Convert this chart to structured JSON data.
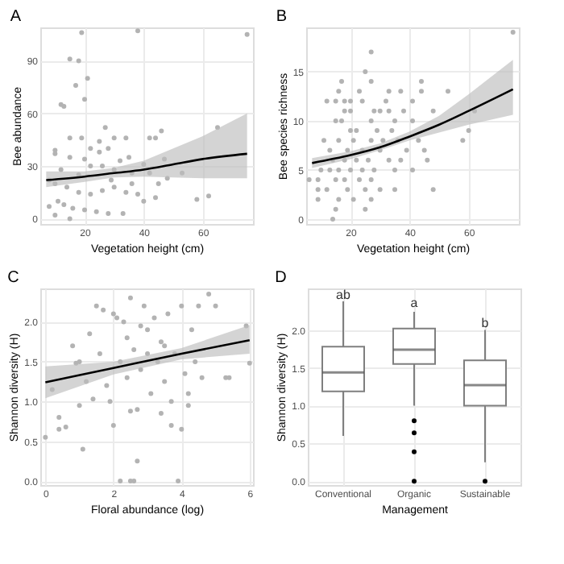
{
  "chart_data": [
    {
      "type": "scatter",
      "title": "A",
      "xlabel": "Vegetation height (cm)",
      "ylabel": "Bee abundance",
      "xlim": [
        5,
        77
      ],
      "ylim": [
        -3,
        109
      ],
      "xticks": [
        20,
        40,
        60
      ],
      "yticks": [
        0,
        30,
        60,
        90
      ],
      "grid": true,
      "series": [
        {
          "type": "scatter",
          "color": "#b3b3b3",
          "x": [
            19,
            38,
            75,
            15,
            18,
            21,
            17,
            20,
            12,
            13,
            27,
            46,
            65,
            10,
            10,
            15,
            19,
            22,
            30,
            34,
            42,
            44,
            25,
            15,
            20,
            25,
            28,
            35,
            32,
            40,
            47,
            12,
            18,
            22,
            26,
            30,
            36,
            42,
            48,
            53,
            8,
            10,
            14,
            18,
            22,
            26,
            30,
            34,
            38,
            44,
            58,
            62,
            8,
            11,
            13,
            16,
            20,
            24,
            28,
            33,
            10,
            15,
            40,
            29,
            45,
            36
          ],
          "values": [
            106,
            107,
            105,
            91,
            90,
            80,
            76,
            68,
            65,
            64,
            52,
            50,
            52,
            39,
            37,
            46,
            46,
            40,
            46,
            46,
            46,
            46,
            44,
            35,
            34,
            38,
            40,
            35,
            33,
            31,
            34,
            28,
            25,
            30,
            30,
            28,
            26,
            26,
            23,
            26,
            22,
            20,
            18,
            15,
            14,
            16,
            18,
            15,
            14,
            12,
            11,
            13,
            7,
            10,
            8,
            6,
            5,
            4,
            3,
            3,
            2,
            0,
            10,
            22,
            20,
            20
          ]
        },
        {
          "type": "line",
          "color": "#000000",
          "x": [
            7,
            20,
            30,
            40,
            50,
            60,
            75
          ],
          "values": [
            22,
            24,
            26,
            28,
            31,
            34,
            37
          ],
          "lower": [
            18,
            21,
            23.5,
            24,
            23.5,
            23,
            23
          ],
          "upper": [
            27,
            27,
            29,
            33,
            40,
            47,
            60
          ]
        }
      ]
    },
    {
      "type": "scatter",
      "title": "B",
      "xlabel": "Vegetation height (cm)",
      "ylabel": "Bee species richness",
      "xlim": [
        5,
        77
      ],
      "ylim": [
        -0.5,
        19.5
      ],
      "xticks": [
        20,
        40,
        60
      ],
      "yticks": [
        0,
        5,
        10,
        15
      ],
      "grid": true,
      "series": [
        {
          "type": "scatter",
          "color": "#b3b3b3",
          "x": [
            75,
            27,
            25,
            17,
            27,
            44,
            16,
            23,
            33,
            37,
            44,
            53,
            12,
            15,
            18,
            20,
            24,
            32,
            41,
            18,
            20,
            28,
            30,
            33,
            38,
            48,
            62,
            15,
            17,
            27,
            35,
            41,
            20,
            22,
            29,
            34,
            60,
            11,
            16,
            21,
            27,
            31,
            36,
            43,
            58,
            13,
            19,
            24,
            30,
            39,
            45,
            14,
            18,
            22,
            26,
            33,
            37,
            46,
            10,
            13,
            16,
            20,
            24,
            28,
            35,
            41,
            6,
            9,
            15,
            18,
            23,
            27,
            9,
            12,
            19,
            25,
            30,
            35,
            48,
            9,
            16,
            21,
            27,
            15,
            25,
            14
          ],
          "values": [
            19,
            17,
            15,
            14,
            14,
            14,
            13,
            13,
            13,
            13,
            13,
            13,
            12,
            12,
            12,
            12,
            12,
            12,
            12,
            11,
            11,
            11,
            11,
            11,
            11,
            11,
            11,
            10,
            10,
            10,
            10,
            10,
            9,
            9,
            9,
            9,
            9,
            8,
            8,
            8,
            8,
            8,
            8,
            8,
            8,
            7,
            7,
            7,
            7,
            7,
            7,
            6,
            6,
            6,
            6,
            6,
            6,
            6,
            5,
            5,
            5,
            5,
            5,
            5,
            5,
            5,
            4,
            4,
            4,
            4,
            4,
            4,
            3,
            3,
            3,
            3,
            3,
            3,
            3,
            2,
            2,
            2,
            2,
            1,
            1,
            0
          ]
        },
        {
          "type": "line",
          "color": "#000000",
          "x": [
            7,
            20,
            30,
            40,
            50,
            60,
            75
          ],
          "values": [
            5.7,
            6.5,
            7.3,
            8.4,
            9.6,
            11,
            13.2
          ],
          "lower": [
            5.2,
            6.1,
            7,
            8,
            8.8,
            9.6,
            10.6
          ],
          "upper": [
            6.2,
            6.9,
            7.7,
            8.9,
            10.5,
            12.7,
            16.2
          ]
        }
      ]
    },
    {
      "type": "scatter",
      "title": "C",
      "xlabel": "Floral abundance (log)",
      "ylabel": "Shannon diversity (H)",
      "xlim": [
        -0.15,
        6.1
      ],
      "ylim": [
        -0.05,
        2.42
      ],
      "xticks": [
        0,
        2,
        4,
        6
      ],
      "yticks": [
        {
          "value": 0,
          "label": "0.0"
        },
        0.5,
        {
          "value": 1,
          "label": "1.0"
        },
        1.5,
        {
          "value": 2,
          "label": "2.0"
        }
      ],
      "grid": true,
      "series": [
        {
          "type": "scatter",
          "color": "#b3b3b3",
          "x": [
            0,
            0.2,
            0.4,
            0.4,
            0.6,
            0.8,
            0.9,
            1,
            1,
            1.1,
            1.2,
            1.3,
            1.4,
            1.5,
            1.6,
            1.7,
            1.8,
            1.9,
            2,
            2,
            2.1,
            2.2,
            2.3,
            2.4,
            2.4,
            2.5,
            2.5,
            2.6,
            2.6,
            2.2,
            2.5,
            2.7,
            2.7,
            2.8,
            2.9,
            3,
            3.1,
            3.2,
            3.3,
            3.4,
            3.4,
            3.5,
            3.6,
            3.7,
            3.7,
            3.8,
            3.9,
            4,
            4,
            4.1,
            4.2,
            4.3,
            4.4,
            4.5,
            4.6,
            4.8,
            5,
            5.3,
            5.4,
            6,
            5.9,
            3,
            3.5,
            2.8,
            4.2
          ],
          "values": [
            0.55,
            1.15,
            0.8,
            0.65,
            0.68,
            1.7,
            1.48,
            1.5,
            0.95,
            0.4,
            1.25,
            1.85,
            1.03,
            2.2,
            1.6,
            2.15,
            1.2,
            1,
            2.1,
            0.7,
            2.05,
            1.5,
            2,
            1.8,
            1.3,
            0.88,
            2.3,
            1.65,
            0,
            0,
            0,
            0.25,
            0.9,
            1.4,
            2.2,
            1.9,
            1.1,
            2.05,
            1.5,
            0.85,
            1.75,
            1.25,
            2.1,
            1,
            0.7,
            1.6,
            0,
            2.2,
            0.65,
            1.35,
            0.95,
            1.9,
            1.5,
            2.2,
            1.3,
            2.35,
            2.2,
            1.3,
            1.3,
            1.48,
            1.95,
            1.6,
            1.7,
            1.95,
            1.1
          ]
        },
        {
          "type": "line",
          "color": "#000000",
          "x": [
            0,
            2,
            4,
            6
          ],
          "values": [
            1.24,
            1.42,
            1.6,
            1.77
          ],
          "lower": [
            1.04,
            1.34,
            1.53,
            1.6
          ],
          "upper": [
            1.44,
            1.5,
            1.67,
            1.96
          ]
        }
      ]
    },
    {
      "type": "box",
      "title": "D",
      "xlabel": "Management",
      "ylabel": "Shannon diversity (H)",
      "categories": [
        "Conventional",
        "Organic",
        "Sustainable"
      ],
      "ylim": [
        -0.05,
        2.55
      ],
      "yticks": [
        {
          "value": 0,
          "label": "0.0"
        },
        0.5,
        {
          "value": 1,
          "label": "1.0"
        },
        1.5,
        {
          "value": 2,
          "label": "2.0"
        }
      ],
      "grid": true,
      "boxes": [
        {
          "low": 0.6,
          "q1": 1.19,
          "median": 1.44,
          "q3": 1.78,
          "high": 2.38
        },
        {
          "low": 1.0,
          "q1": 1.55,
          "median": 1.74,
          "q3": 2.02,
          "high": 2.24,
          "outliers": [
            0.8,
            0.64,
            0.39,
            0.0
          ]
        },
        {
          "low": 0.25,
          "q1": 1.0,
          "median": 1.27,
          "q3": 1.6,
          "high": 2.0,
          "outliers": [
            0.0
          ]
        }
      ],
      "annotations": [
        {
          "text": "ab",
          "x": "Conventional",
          "y": 2.45
        },
        {
          "text": "a",
          "x": "Organic",
          "y": 2.35
        },
        {
          "text": "b",
          "x": "Sustainable",
          "y": 2.08
        }
      ]
    }
  ]
}
